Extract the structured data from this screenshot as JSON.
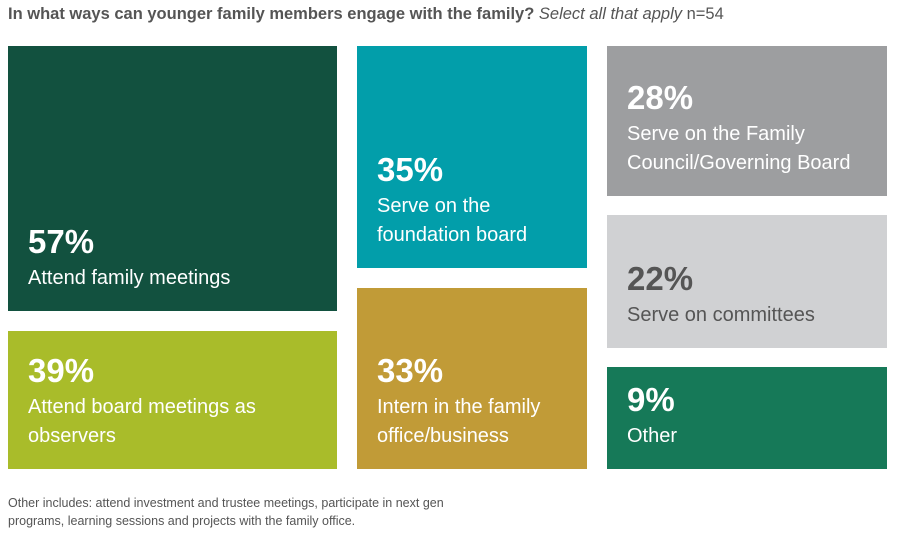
{
  "header": {
    "question": "In what ways can younger family members engage with the family?",
    "hint": "Select all that apply",
    "sample": "n=54"
  },
  "footnote": "Other includes: attend investment and trustee meetings, participate in next gen programs, learning sessions and projects with the family office.",
  "chart_data": {
    "type": "treemap",
    "unit": "%",
    "items": [
      {
        "value": 57,
        "pct_label": "57%",
        "label": "Attend family meetings",
        "color": "#12513f"
      },
      {
        "value": 39,
        "pct_label": "39%",
        "label": "Attend board meetings as observers",
        "color": "#a9bc2a"
      },
      {
        "value": 35,
        "pct_label": "35%",
        "label": "Serve on the foundation board",
        "color": "#029eaa"
      },
      {
        "value": 33,
        "pct_label": "33%",
        "label": "Intern in the family office/business",
        "color": "#c19b37"
      },
      {
        "value": 28,
        "pct_label": "28%",
        "label": "Serve on the Family Council/Governing Board",
        "color": "#9d9ea0"
      },
      {
        "value": 22,
        "pct_label": "22%",
        "label": "Serve on committees",
        "color": "#d0d1d3"
      },
      {
        "value": 9,
        "pct_label": "9%",
        "label": "Other",
        "color": "#167958"
      }
    ]
  }
}
